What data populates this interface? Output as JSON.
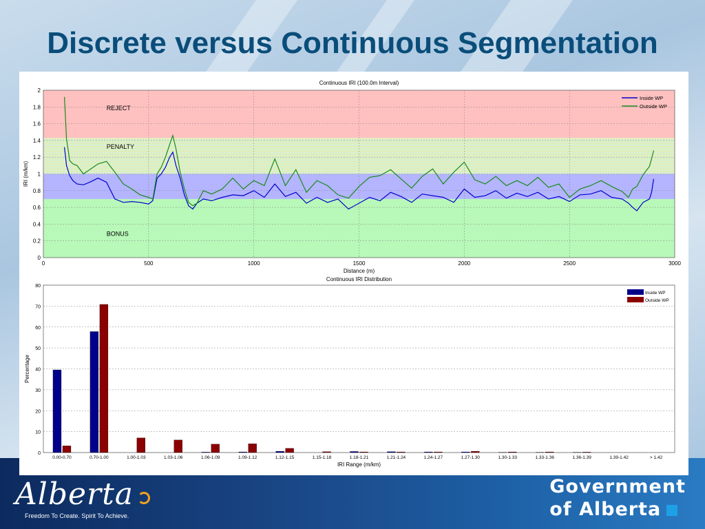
{
  "page": {
    "title": "Discrete versus Continuous Segmentation",
    "logo_text": "Alberta",
    "tagline": "Freedom To Create. Spirit To Achieve.",
    "gov_line1": "Government",
    "gov_line2": "of Alberta"
  },
  "colors": {
    "title": "#0a4d7a",
    "inside_wp": "#0000cc",
    "outside_wp": "#1a8a1a",
    "bar_inside": "#00008b",
    "bar_outside": "#8b0000",
    "reject_zone": "#ffc0c0",
    "penalty_zone": "#d8f0d0",
    "inside_zone": "#b4b4ff",
    "bonus_zone": "#b8f8b8"
  },
  "chart_data": [
    {
      "type": "line",
      "title": "Continuous IRI (100.0m Interval)",
      "xlabel": "Distance (m)",
      "ylabel": "IRI (m/km)",
      "xlim": [
        0,
        3000
      ],
      "ylim": [
        0,
        2
      ],
      "x_ticks": [
        "0",
        "500",
        "1000",
        "1500",
        "2000",
        "2500",
        "3000"
      ],
      "y_ticks": [
        "0",
        "0.2",
        "0.4",
        "0.6",
        "0.8",
        "1",
        "1.2",
        "1.4",
        "1.6",
        "1.8",
        "2"
      ],
      "legend": "top-right",
      "grid": true,
      "zones": [
        {
          "label": "REJECT",
          "from": 1.43,
          "to": 2.0
        },
        {
          "label": "PENALTY",
          "from": 1.0,
          "to": 1.43
        },
        {
          "label": "",
          "from": 0.7,
          "to": 1.0
        },
        {
          "label": "BONUS",
          "from": 0.0,
          "to": 0.7
        }
      ],
      "x": [
        100,
        110,
        125,
        140,
        160,
        190,
        220,
        260,
        300,
        340,
        380,
        420,
        460,
        500,
        520,
        540,
        560,
        580,
        600,
        615,
        630,
        650,
        670,
        690,
        710,
        730,
        760,
        800,
        850,
        900,
        950,
        1000,
        1050,
        1100,
        1150,
        1200,
        1250,
        1300,
        1350,
        1400,
        1450,
        1500,
        1550,
        1600,
        1650,
        1700,
        1750,
        1800,
        1850,
        1900,
        1950,
        2000,
        2050,
        2100,
        2150,
        2200,
        2250,
        2300,
        2350,
        2400,
        2450,
        2500,
        2550,
        2600,
        2650,
        2700,
        2750,
        2780,
        2800,
        2820,
        2850,
        2880,
        2890,
        2900
      ],
      "series": [
        {
          "name": "Inside WP",
          "values": [
            1.32,
            1.1,
            0.98,
            0.92,
            0.88,
            0.87,
            0.9,
            0.95,
            0.9,
            0.7,
            0.66,
            0.67,
            0.66,
            0.64,
            0.68,
            0.95,
            1.0,
            1.08,
            1.2,
            1.26,
            1.1,
            0.95,
            0.75,
            0.62,
            0.58,
            0.65,
            0.7,
            0.68,
            0.72,
            0.75,
            0.74,
            0.8,
            0.72,
            0.88,
            0.73,
            0.78,
            0.65,
            0.72,
            0.66,
            0.7,
            0.58,
            0.65,
            0.72,
            0.68,
            0.78,
            0.73,
            0.66,
            0.76,
            0.74,
            0.72,
            0.66,
            0.82,
            0.72,
            0.74,
            0.8,
            0.71,
            0.77,
            0.73,
            0.78,
            0.7,
            0.73,
            0.67,
            0.75,
            0.76,
            0.8,
            0.72,
            0.7,
            0.65,
            0.6,
            0.56,
            0.66,
            0.7,
            0.78,
            0.94
          ]
        },
        {
          "name": "Outside WP",
          "values": [
            1.92,
            1.42,
            1.16,
            1.12,
            1.1,
            1.0,
            1.05,
            1.12,
            1.15,
            1.02,
            0.88,
            0.82,
            0.75,
            0.72,
            0.7,
            1.0,
            1.08,
            1.2,
            1.35,
            1.46,
            1.3,
            1.02,
            0.82,
            0.66,
            0.62,
            0.65,
            0.8,
            0.76,
            0.82,
            0.95,
            0.82,
            0.92,
            0.86,
            1.18,
            0.86,
            1.05,
            0.78,
            0.92,
            0.86,
            0.75,
            0.71,
            0.85,
            0.96,
            0.98,
            1.05,
            0.94,
            0.83,
            0.97,
            1.06,
            0.88,
            1.02,
            1.14,
            0.93,
            0.88,
            0.97,
            0.86,
            0.92,
            0.86,
            0.96,
            0.84,
            0.88,
            0.72,
            0.82,
            0.86,
            0.92,
            0.85,
            0.79,
            0.72,
            0.82,
            0.85,
            0.99,
            1.09,
            1.18,
            1.28
          ]
        }
      ]
    },
    {
      "type": "bar",
      "title": "Continuous IRI Distribution",
      "xlabel": "IRI Range (m/km)",
      "ylabel": "Percentage",
      "ylim": [
        0,
        80
      ],
      "y_ticks": [
        "0",
        "10",
        "20",
        "30",
        "40",
        "50",
        "60",
        "70",
        "80"
      ],
      "legend": "top-right",
      "grid": true,
      "categories": [
        "0.00-0.70",
        "0.70-1.00",
        "1.00-1.03",
        "1.03-1.06",
        "1.06-1.09",
        "1.09-1.12",
        "1.12-1.15",
        "1.15-1.18",
        "1.18-1.21",
        "1.21-1.24",
        "1.24-1.27",
        "1.27-1.30",
        "1.30-1.33",
        "1.33-1.36",
        "1.36-1.39",
        "1.39-1.42",
        "> 1.42"
      ],
      "series": [
        {
          "name": "Inside WP",
          "values": [
            39.5,
            57.8,
            0,
            0,
            0.2,
            0.3,
            0.6,
            0,
            0.5,
            0.4,
            0.3,
            0.3,
            0.1,
            0.1,
            0.1,
            0,
            0
          ]
        },
        {
          "name": "Outside WP",
          "values": [
            3.2,
            70.8,
            7,
            6,
            4,
            4.2,
            2,
            0.4,
            0.3,
            0.3,
            0.3,
            0.6,
            0.3,
            0.3,
            0.2,
            0,
            0
          ]
        }
      ]
    }
  ]
}
